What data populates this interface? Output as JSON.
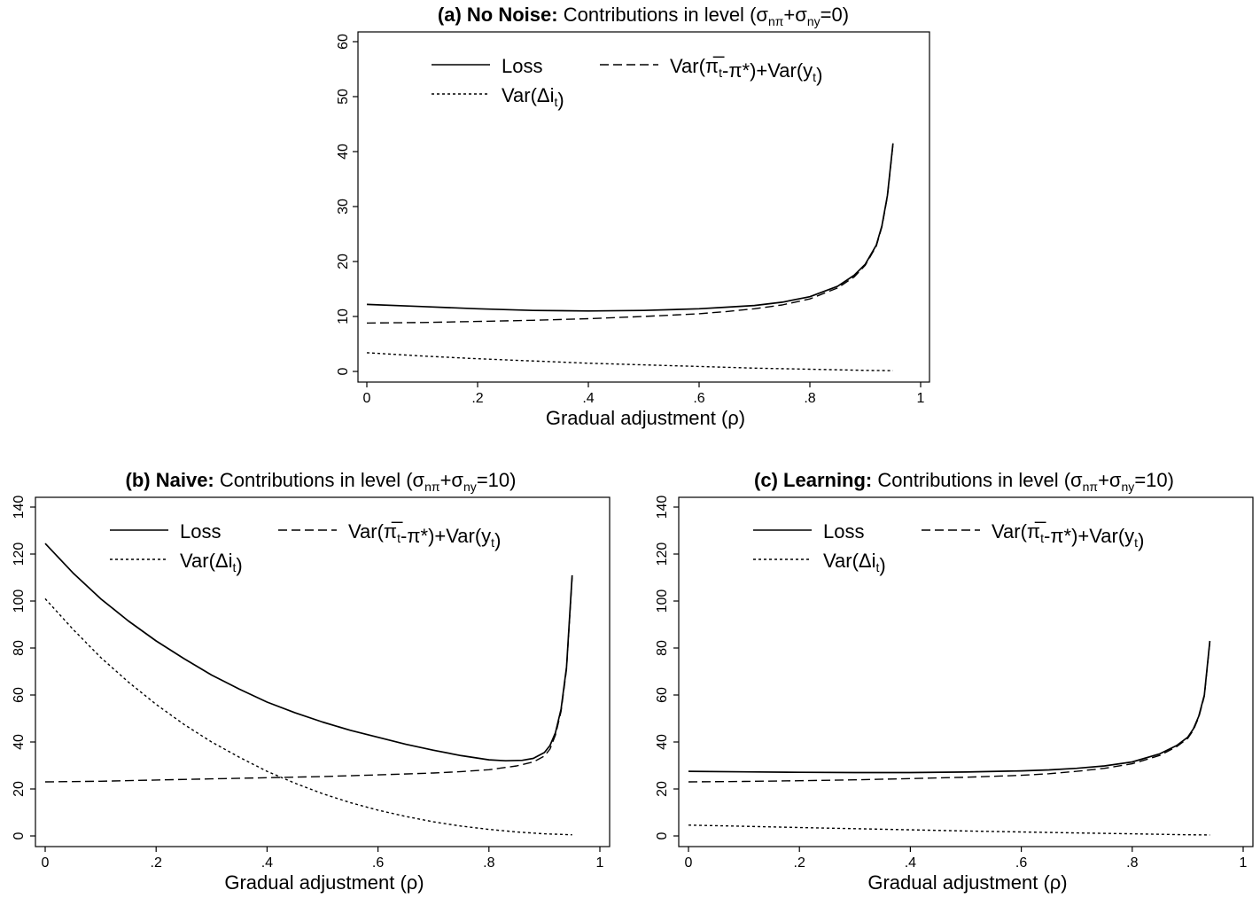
{
  "chart_data": [
    {
      "type": "line",
      "panel": "a",
      "title_bold": "(a) No Noise:",
      "title_rest": "Contributions in level",
      "title_param": "(σnπ+σny=0)",
      "xlabel": "Gradual adjustment (ρ)",
      "ylabel": "",
      "xlim": [
        0,
        1
      ],
      "ylim": [
        0,
        60
      ],
      "xticks": [
        "0",
        ".2",
        ".4",
        ".6",
        ".8",
        "1"
      ],
      "yticks": [
        "0",
        "10",
        "20",
        "30",
        "40",
        "50",
        "60"
      ],
      "legend": [
        "Loss",
        "Var(π̅t-π*)+Var(yt)",
        "Var(Δit)"
      ],
      "series": [
        {
          "name": "Loss",
          "style": "solid",
          "x": [
            0,
            0.1,
            0.2,
            0.3,
            0.4,
            0.5,
            0.6,
            0.65,
            0.7,
            0.75,
            0.8,
            0.85,
            0.88,
            0.9,
            0.92,
            0.93,
            0.94,
            0.95
          ],
          "y": [
            12.2,
            11.8,
            11.4,
            11.1,
            11.0,
            11.1,
            11.4,
            11.7,
            12.0,
            12.6,
            13.6,
            15.5,
            17.5,
            19.5,
            23.0,
            26.5,
            32.0,
            41.5
          ]
        },
        {
          "name": "Var(π̅t-π*)+Var(yt)",
          "style": "dashed",
          "x": [
            0,
            0.1,
            0.2,
            0.3,
            0.4,
            0.5,
            0.6,
            0.65,
            0.7,
            0.75,
            0.8,
            0.85,
            0.88,
            0.9,
            0.92,
            0.93,
            0.94,
            0.95
          ],
          "y": [
            8.8,
            8.9,
            9.1,
            9.3,
            9.6,
            10.0,
            10.5,
            10.9,
            11.4,
            12.1,
            13.2,
            15.2,
            17.2,
            19.3,
            22.8,
            26.3,
            31.8,
            41.3
          ]
        },
        {
          "name": "Var(Δit)",
          "style": "dotted",
          "x": [
            0,
            0.1,
            0.2,
            0.3,
            0.4,
            0.5,
            0.6,
            0.7,
            0.8,
            0.9,
            0.95
          ],
          "y": [
            3.4,
            2.8,
            2.3,
            1.9,
            1.5,
            1.2,
            0.9,
            0.6,
            0.4,
            0.2,
            0.15
          ]
        }
      ]
    },
    {
      "type": "line",
      "panel": "b",
      "title_bold": "(b) Naive:",
      "title_rest": "Contributions in level",
      "title_param": "(σnπ+σny=10)",
      "xlabel": "Gradual adjustment (ρ)",
      "ylabel": "",
      "xlim": [
        0,
        1
      ],
      "ylim": [
        0,
        140
      ],
      "xticks": [
        "0",
        ".2",
        ".4",
        ".6",
        ".8",
        "1"
      ],
      "yticks": [
        "0",
        "20",
        "40",
        "60",
        "80",
        "100",
        "120",
        "140"
      ],
      "legend": [
        "Loss",
        "Var(π̅t-π*)+Var(yt)",
        "Var(Δit)"
      ],
      "series": [
        {
          "name": "Loss",
          "style": "solid",
          "x": [
            0,
            0.05,
            0.1,
            0.15,
            0.2,
            0.25,
            0.3,
            0.35,
            0.4,
            0.45,
            0.5,
            0.55,
            0.6,
            0.65,
            0.7,
            0.75,
            0.8,
            0.83,
            0.86,
            0.88,
            0.9,
            0.91,
            0.92,
            0.93,
            0.94,
            0.95
          ],
          "y": [
            124.5,
            112,
            101,
            91.5,
            83,
            75.5,
            68.5,
            62.5,
            57,
            52.5,
            48.5,
            45,
            42,
            39,
            36.5,
            34.2,
            32.4,
            32.0,
            32.2,
            33.0,
            35.5,
            38.5,
            44,
            54,
            72,
            111
          ]
        },
        {
          "name": "Var(π̅t-π*)+Var(yt)",
          "style": "dashed",
          "x": [
            0,
            0.1,
            0.2,
            0.3,
            0.4,
            0.5,
            0.6,
            0.7,
            0.75,
            0.8,
            0.85,
            0.88,
            0.9,
            0.91,
            0.92,
            0.93,
            0.94,
            0.95
          ],
          "y": [
            23.0,
            23.3,
            23.8,
            24.3,
            24.8,
            25.3,
            26.0,
            26.8,
            27.4,
            28.2,
            29.8,
            31.5,
            34.0,
            37.0,
            43,
            53,
            71,
            110
          ]
        },
        {
          "name": "Var(Δit)",
          "style": "dotted",
          "x": [
            0,
            0.05,
            0.1,
            0.15,
            0.2,
            0.25,
            0.3,
            0.35,
            0.4,
            0.45,
            0.5,
            0.55,
            0.6,
            0.65,
            0.7,
            0.75,
            0.8,
            0.85,
            0.9,
            0.95
          ],
          "y": [
            101,
            88,
            76,
            65.5,
            56,
            47.5,
            40,
            33.5,
            27.5,
            22.5,
            18,
            14.2,
            11,
            8.3,
            6.0,
            4.2,
            2.8,
            1.7,
            0.9,
            0.5
          ]
        }
      ]
    },
    {
      "type": "line",
      "panel": "c",
      "title_bold": "(c) Learning:",
      "title_rest": "Contributions in level",
      "title_param": "(σnπ+σny=10)",
      "xlabel": "Gradual adjustment (ρ)",
      "ylabel": "",
      "xlim": [
        0,
        1
      ],
      "ylim": [
        0,
        140
      ],
      "xticks": [
        "0",
        ".2",
        ".4",
        ".6",
        ".8",
        "1"
      ],
      "yticks": [
        "0",
        "20",
        "40",
        "60",
        "80",
        "100",
        "120",
        "140"
      ],
      "legend": [
        "Loss",
        "Var(π̅t-π*)+Var(yt)",
        "Var(Δit)"
      ],
      "series": [
        {
          "name": "Loss",
          "style": "solid",
          "x": [
            0,
            0.1,
            0.2,
            0.3,
            0.4,
            0.5,
            0.6,
            0.65,
            0.7,
            0.75,
            0.8,
            0.85,
            0.88,
            0.9,
            0.91,
            0.92,
            0.93,
            0.94
          ],
          "y": [
            27.5,
            27.3,
            27.1,
            27.0,
            27.0,
            27.2,
            27.7,
            28.1,
            28.8,
            29.8,
            31.5,
            35.0,
            38.5,
            42.0,
            45.5,
            51,
            60,
            83
          ]
        },
        {
          "name": "Var(π̅t-π*)+Var(yt)",
          "style": "dashed",
          "x": [
            0,
            0.1,
            0.2,
            0.3,
            0.4,
            0.5,
            0.6,
            0.65,
            0.7,
            0.75,
            0.8,
            0.85,
            0.88,
            0.9,
            0.91,
            0.92,
            0.93,
            0.94
          ],
          "y": [
            23.0,
            23.2,
            23.5,
            23.9,
            24.4,
            25.0,
            25.8,
            26.5,
            27.5,
            28.8,
            30.7,
            34.3,
            38.0,
            41.5,
            45.0,
            50.5,
            59.5,
            82.5
          ]
        },
        {
          "name": "Var(Δit)",
          "style": "dotted",
          "x": [
            0,
            0.1,
            0.2,
            0.3,
            0.4,
            0.5,
            0.6,
            0.7,
            0.8,
            0.9,
            0.94
          ],
          "y": [
            4.6,
            4.1,
            3.6,
            3.1,
            2.6,
            2.1,
            1.7,
            1.3,
            0.9,
            0.5,
            0.4
          ]
        }
      ]
    }
  ]
}
